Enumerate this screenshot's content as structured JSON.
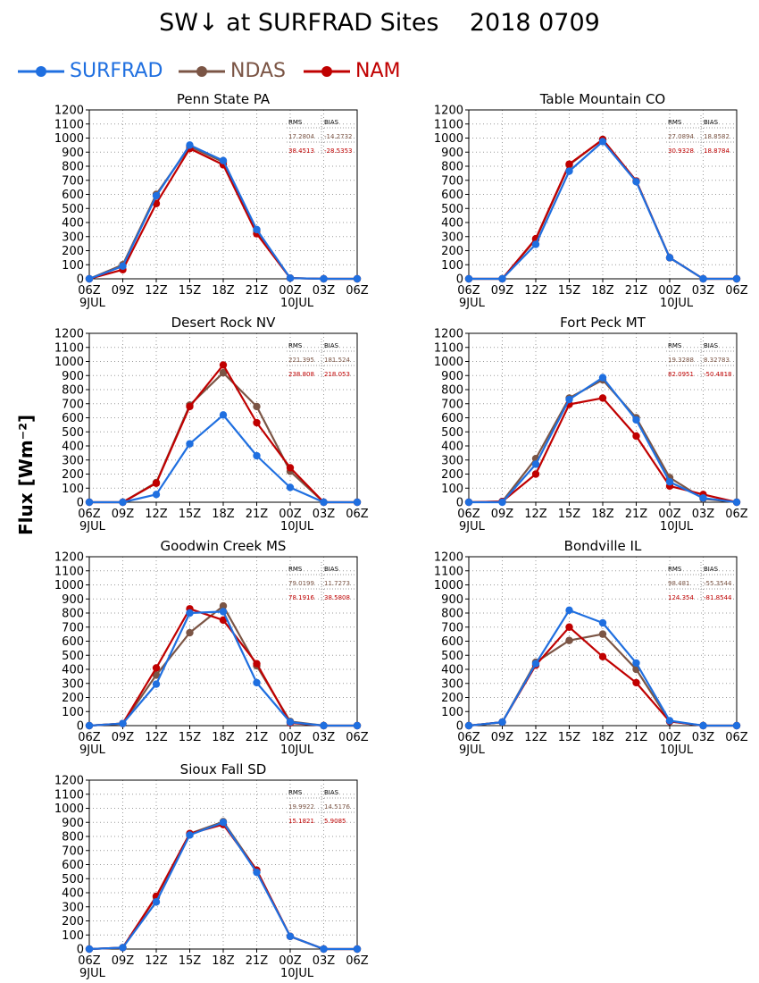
{
  "title": "SW↓ at SURFRAD Sites    2018 0709",
  "legend": [
    {
      "name": "SURFRAD",
      "color": "#1f6fe0"
    },
    {
      "name": "NDAS",
      "color": "#7b5545"
    },
    {
      "name": "NAM",
      "color": "#c00000"
    }
  ],
  "ylabel": "Flux [Wm⁻²]",
  "stats_header": {
    "rms": "RMS",
    "bias": "BIAS"
  },
  "chart_data": [
    {
      "type": "line",
      "title": "Penn State PA",
      "x": [
        "06Z",
        "09Z",
        "12Z",
        "15Z",
        "18Z",
        "21Z",
        "00Z",
        "03Z",
        "06Z"
      ],
      "date_labels": [
        "9JUL",
        "",
        "",
        "",
        "",
        "",
        "10JUL",
        "",
        ""
      ],
      "ylim": [
        0,
        1200
      ],
      "yticks": [
        0,
        100,
        200,
        300,
        400,
        500,
        600,
        700,
        800,
        900,
        1000,
        1100,
        1200
      ],
      "grid": true,
      "stats": {
        "ndas": {
          "rms": "17.2804",
          "bias": "-14.2732"
        },
        "nam": {
          "rms": "38.4513",
          "bias": "-28.5353"
        }
      },
      "series": [
        {
          "name": "SURFRAD",
          "values": [
            0,
            90,
            590,
            950,
            840,
            350,
            5,
            0,
            0
          ]
        },
        {
          "name": "NDAS",
          "values": [
            0,
            100,
            600,
            940,
            830,
            340,
            5,
            0,
            0
          ]
        },
        {
          "name": "NAM",
          "values": [
            0,
            65,
            535,
            925,
            810,
            320,
            5,
            0,
            0
          ]
        }
      ]
    },
    {
      "type": "line",
      "title": "Table Mountain CO",
      "x": [
        "06Z",
        "09Z",
        "12Z",
        "15Z",
        "18Z",
        "21Z",
        "00Z",
        "03Z",
        "06Z"
      ],
      "date_labels": [
        "9JUL",
        "",
        "",
        "",
        "",
        "",
        "10JUL",
        "",
        ""
      ],
      "ylim": [
        0,
        1200
      ],
      "yticks": [
        0,
        100,
        200,
        300,
        400,
        500,
        600,
        700,
        800,
        900,
        1000,
        1100,
        1200
      ],
      "grid": true,
      "stats": {
        "ndas": {
          "rms": "27.0894",
          "bias": "18.8582"
        },
        "nam": {
          "rms": "30.9328",
          "bias": "18.8784"
        }
      },
      "series": [
        {
          "name": "SURFRAD",
          "values": [
            0,
            0,
            245,
            765,
            975,
            690,
            150,
            0,
            0
          ]
        },
        {
          "name": "NDAS",
          "values": [
            0,
            0,
            280,
            810,
            990,
            695,
            150,
            0,
            0
          ]
        },
        {
          "name": "NAM",
          "values": [
            0,
            0,
            285,
            815,
            990,
            695,
            150,
            0,
            0
          ]
        }
      ]
    },
    {
      "type": "line",
      "title": "Desert Rock NV",
      "x": [
        "06Z",
        "09Z",
        "12Z",
        "15Z",
        "18Z",
        "21Z",
        "00Z",
        "03Z",
        "06Z"
      ],
      "date_labels": [
        "9JUL",
        "",
        "",
        "",
        "",
        "",
        "10JUL",
        "",
        ""
      ],
      "ylim": [
        0,
        1200
      ],
      "yticks": [
        0,
        100,
        200,
        300,
        400,
        500,
        600,
        700,
        800,
        900,
        1000,
        1100,
        1200
      ],
      "grid": true,
      "stats": {
        "ndas": {
          "rms": "221.395",
          "bias": "181.524"
        },
        "nam": {
          "rms": "238.808",
          "bias": "218.053"
        }
      },
      "series": [
        {
          "name": "SURFRAD",
          "values": [
            0,
            0,
            55,
            415,
            620,
            330,
            105,
            0,
            0
          ]
        },
        {
          "name": "NDAS",
          "values": [
            0,
            0,
            140,
            690,
            920,
            680,
            220,
            0,
            0
          ]
        },
        {
          "name": "NAM",
          "values": [
            0,
            0,
            135,
            680,
            975,
            565,
            245,
            0,
            0
          ]
        }
      ]
    },
    {
      "type": "line",
      "title": "Fort Peck MT",
      "x": [
        "06Z",
        "09Z",
        "12Z",
        "15Z",
        "18Z",
        "21Z",
        "00Z",
        "03Z",
        "06Z"
      ],
      "date_labels": [
        "9JUL",
        "",
        "",
        "",
        "",
        "",
        "10JUL",
        "",
        ""
      ],
      "ylim": [
        0,
        1200
      ],
      "yticks": [
        0,
        100,
        200,
        300,
        400,
        500,
        600,
        700,
        800,
        900,
        1000,
        1100,
        1200
      ],
      "grid": true,
      "stats": {
        "ndas": {
          "rms": "19.3288",
          "bias": "8.32783"
        },
        "nam": {
          "rms": "82.0951",
          "bias": "-50.4818"
        }
      },
      "series": [
        {
          "name": "SURFRAD",
          "values": [
            0,
            0,
            270,
            730,
            885,
            585,
            145,
            30,
            0
          ]
        },
        {
          "name": "NDAS",
          "values": [
            0,
            5,
            310,
            740,
            870,
            600,
            175,
            25,
            0
          ]
        },
        {
          "name": "NAM",
          "values": [
            0,
            5,
            200,
            695,
            740,
            470,
            115,
            55,
            0
          ]
        }
      ]
    },
    {
      "type": "line",
      "title": "Goodwin Creek MS",
      "x": [
        "06Z",
        "09Z",
        "12Z",
        "15Z",
        "18Z",
        "21Z",
        "00Z",
        "03Z",
        "06Z"
      ],
      "date_labels": [
        "9JUL",
        "",
        "",
        "",
        "",
        "",
        "10JUL",
        "",
        ""
      ],
      "ylim": [
        0,
        1200
      ],
      "yticks": [
        0,
        100,
        200,
        300,
        400,
        500,
        600,
        700,
        800,
        900,
        1000,
        1100,
        1200
      ],
      "grid": true,
      "stats": {
        "ndas": {
          "rms": "79.0199",
          "bias": "11.7273"
        },
        "nam": {
          "rms": "78.1916",
          "bias": "38.5808"
        }
      },
      "series": [
        {
          "name": "SURFRAD",
          "values": [
            0,
            15,
            295,
            800,
            810,
            305,
            25,
            0,
            0
          ]
        },
        {
          "name": "NDAS",
          "values": [
            0,
            15,
            360,
            660,
            850,
            425,
            30,
            0,
            0
          ]
        },
        {
          "name": "NAM",
          "values": [
            0,
            15,
            410,
            830,
            750,
            440,
            20,
            0,
            0
          ]
        }
      ]
    },
    {
      "type": "line",
      "title": "Bondville IL",
      "x": [
        "06Z",
        "09Z",
        "12Z",
        "15Z",
        "18Z",
        "21Z",
        "00Z",
        "03Z",
        "06Z"
      ],
      "date_labels": [
        "9JUL",
        "",
        "",
        "",
        "",
        "",
        "10JUL",
        "",
        ""
      ],
      "ylim": [
        0,
        1200
      ],
      "yticks": [
        0,
        100,
        200,
        300,
        400,
        500,
        600,
        700,
        800,
        900,
        1000,
        1100,
        1200
      ],
      "grid": true,
      "stats": {
        "ndas": {
          "rms": "98.481",
          "bias": "-55.3544"
        },
        "nam": {
          "rms": "124.354",
          "bias": "-81.8544"
        }
      },
      "series": [
        {
          "name": "SURFRAD",
          "values": [
            0,
            25,
            440,
            820,
            730,
            445,
            35,
            0,
            0
          ]
        },
        {
          "name": "NDAS",
          "values": [
            0,
            25,
            450,
            605,
            650,
            400,
            30,
            0,
            0
          ]
        },
        {
          "name": "NAM",
          "values": [
            0,
            25,
            430,
            700,
            490,
            305,
            30,
            0,
            0
          ]
        }
      ]
    },
    {
      "type": "line",
      "title": "Sioux Fall SD",
      "x": [
        "06Z",
        "09Z",
        "12Z",
        "15Z",
        "18Z",
        "21Z",
        "00Z",
        "03Z",
        "06Z"
      ],
      "date_labels": [
        "9JUL",
        "",
        "",
        "",
        "",
        "",
        "10JUL",
        "",
        ""
      ],
      "ylim": [
        0,
        1200
      ],
      "yticks": [
        0,
        100,
        200,
        300,
        400,
        500,
        600,
        700,
        800,
        900,
        1000,
        1100,
        1200
      ],
      "grid": true,
      "stats": {
        "ndas": {
          "rms": "19.9922",
          "bias": "14.5176"
        },
        "nam": {
          "rms": "15.1821",
          "bias": "5.9085"
        }
      },
      "series": [
        {
          "name": "SURFRAD",
          "values": [
            0,
            10,
            335,
            810,
            900,
            545,
            90,
            0,
            0
          ]
        },
        {
          "name": "NDAS",
          "values": [
            0,
            10,
            370,
            820,
            905,
            560,
            90,
            0,
            0
          ]
        },
        {
          "name": "NAM",
          "values": [
            0,
            10,
            375,
            820,
            885,
            560,
            90,
            0,
            0
          ]
        }
      ]
    }
  ]
}
